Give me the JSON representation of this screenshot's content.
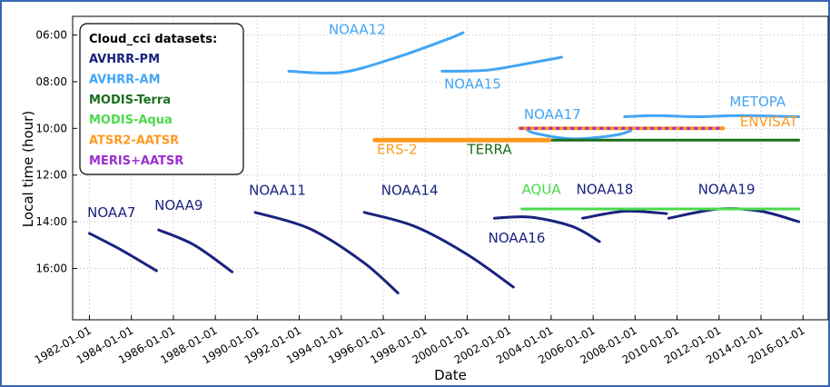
{
  "chart_data": {
    "type": "line",
    "xlabel": "Date",
    "ylabel": "Local time (hour)",
    "xlim": [
      1981.2,
      2017.2
    ],
    "ylim": [
      18.2,
      5.2
    ],
    "y_inverted": true,
    "grid": true,
    "x_ticks": [
      {
        "x": 1982,
        "label": "1982-01-01"
      },
      {
        "x": 1984,
        "label": "1984-01-01"
      },
      {
        "x": 1986,
        "label": "1986-01-01"
      },
      {
        "x": 1988,
        "label": "1988-01-01"
      },
      {
        "x": 1990,
        "label": "1990-01-01"
      },
      {
        "x": 1992,
        "label": "1992-01-01"
      },
      {
        "x": 1994,
        "label": "1994-01-01"
      },
      {
        "x": 1996,
        "label": "1996-01-01"
      },
      {
        "x": 1998,
        "label": "1998-01-01"
      },
      {
        "x": 2000,
        "label": "2000-01-01"
      },
      {
        "x": 2002,
        "label": "2002-01-01"
      },
      {
        "x": 2004,
        "label": "2004-01-01"
      },
      {
        "x": 2006,
        "label": "2006-01-01"
      },
      {
        "x": 2008,
        "label": "2008-01-01"
      },
      {
        "x": 2010,
        "label": "2010-01-01"
      },
      {
        "x": 2012,
        "label": "2012-01-01"
      },
      {
        "x": 2014,
        "label": "2014-01-01"
      },
      {
        "x": 2016,
        "label": "2016-01-01"
      }
    ],
    "y_ticks": [
      {
        "y": 6,
        "label": "06:00"
      },
      {
        "y": 8,
        "label": "08:00"
      },
      {
        "y": 10,
        "label": "10:00"
      },
      {
        "y": 12,
        "label": "12:00"
      },
      {
        "y": 14,
        "label": "14:00"
      },
      {
        "y": 16,
        "label": "16:00"
      }
    ],
    "legend": {
      "title": "Cloud_cci datasets:",
      "position": "top-left",
      "items": [
        {
          "label": "AVHRR-PM",
          "color": "#1a237e"
        },
        {
          "label": "AVHRR-AM",
          "color": "#42a5f5"
        },
        {
          "label": "MODIS-Terra",
          "color": "#1b6e1b"
        },
        {
          "label": "MODIS-Aqua",
          "color": "#4cd94c"
        },
        {
          "label": "ATSR2-AATSR",
          "color": "#ff9a1f"
        },
        {
          "label": "MERIS+AATSR",
          "color": "#9b2fd1"
        }
      ]
    },
    "series": [
      {
        "name": "NOAA7",
        "group": "AVHRR-PM",
        "color": "#1a237e",
        "points": [
          [
            1982.0,
            14.5
          ],
          [
            1983.5,
            15.2
          ],
          [
            1985.2,
            16.1
          ]
        ]
      },
      {
        "name": "NOAA9",
        "group": "AVHRR-PM",
        "color": "#1a237e",
        "points": [
          [
            1985.3,
            14.35
          ],
          [
            1987.0,
            15.0
          ],
          [
            1988.8,
            16.15
          ]
        ]
      },
      {
        "name": "NOAA11",
        "group": "AVHRR-PM",
        "color": "#1a237e",
        "points": [
          [
            1989.9,
            13.6
          ],
          [
            1992.5,
            14.3
          ],
          [
            1995.0,
            15.7
          ],
          [
            1996.7,
            17.05
          ]
        ]
      },
      {
        "name": "NOAA14",
        "group": "AVHRR-PM",
        "color": "#1a237e",
        "points": [
          [
            1995.1,
            13.6
          ],
          [
            1997.5,
            14.2
          ],
          [
            2000.0,
            15.4
          ],
          [
            2002.2,
            16.8
          ]
        ]
      },
      {
        "name": "NOAA16",
        "group": "AVHRR-PM",
        "color": "#1a237e",
        "points": [
          [
            2001.3,
            13.85
          ],
          [
            2003.0,
            13.8
          ],
          [
            2005.0,
            14.2
          ],
          [
            2006.3,
            14.85
          ]
        ]
      },
      {
        "name": "NOAA18",
        "group": "AVHRR-PM",
        "color": "#1a237e",
        "points": [
          [
            2005.5,
            13.85
          ],
          [
            2007.5,
            13.55
          ],
          [
            2009.5,
            13.65
          ]
        ]
      },
      {
        "name": "NOAA19",
        "group": "AVHRR-PM",
        "color": "#1a237e",
        "points": [
          [
            2009.6,
            13.85
          ],
          [
            2012.0,
            13.45
          ],
          [
            2014.0,
            13.55
          ],
          [
            2015.8,
            14.0
          ]
        ]
      },
      {
        "name": "NOAA12",
        "group": "AVHRR-AM",
        "color": "#42a5f5",
        "points": [
          [
            1991.5,
            7.55
          ],
          [
            1994.0,
            7.6
          ],
          [
            1996.5,
            7.0
          ],
          [
            1999.0,
            6.2
          ],
          [
            1999.8,
            5.9
          ]
        ]
      },
      {
        "name": "NOAA15",
        "group": "AVHRR-AM",
        "color": "#42a5f5",
        "points": [
          [
            1998.8,
            7.55
          ],
          [
            2001.0,
            7.5
          ],
          [
            2003.0,
            7.2
          ],
          [
            2004.5,
            6.95
          ]
        ]
      },
      {
        "name": "NOAA17",
        "group": "AVHRR-AM",
        "color": "#42a5f5",
        "points": [
          [
            2002.8,
            10.0
          ],
          [
            2003.2,
            10.2
          ],
          [
            2005.0,
            10.45
          ],
          [
            2007.0,
            10.3
          ],
          [
            2007.8,
            10.1
          ]
        ]
      },
      {
        "name": "METOPA",
        "group": "AVHRR-AM",
        "color": "#42a5f5",
        "points": [
          [
            2007.5,
            9.5
          ],
          [
            2009.0,
            9.45
          ],
          [
            2011.0,
            9.5
          ],
          [
            2013.0,
            9.45
          ],
          [
            2015.8,
            9.5
          ]
        ]
      },
      {
        "name": "TERRA",
        "group": "MODIS-Terra",
        "color": "#1b6e1b",
        "points": [
          [
            2000.0,
            10.5
          ],
          [
            2015.8,
            10.5
          ]
        ]
      },
      {
        "name": "AQUA",
        "group": "MODIS-Aqua",
        "color": "#4cd94c",
        "points": [
          [
            2002.6,
            13.45
          ],
          [
            2015.8,
            13.45
          ]
        ]
      },
      {
        "name": "ERS-2",
        "group": "ATSR2-AATSR",
        "color": "#ff9a1f",
        "points": [
          [
            1995.6,
            10.5
          ],
          [
            2003.9,
            10.5
          ]
        ]
      },
      {
        "name": "ENVISAT",
        "group": "ATSR2-AATSR",
        "color": "#ff9a1f",
        "points": [
          [
            2002.5,
            10.0
          ],
          [
            2012.2,
            10.0
          ]
        ]
      },
      {
        "name": "MERIS+AATSR",
        "group": "MERIS+AATSR",
        "color": "#9b2fd1",
        "points": [
          [
            2002.5,
            10.0
          ],
          [
            2012.2,
            10.0
          ]
        ],
        "dashed": true
      }
    ],
    "annotations": [
      {
        "text": "NOAA7",
        "x": 1981.9,
        "y": 13.8,
        "color": "#1a237e"
      },
      {
        "text": "NOAA9",
        "x": 1985.1,
        "y": 13.5,
        "color": "#1a237e"
      },
      {
        "text": "NOAA11",
        "x": 1989.6,
        "y": 12.85,
        "color": "#1a237e"
      },
      {
        "text": "NOAA14",
        "x": 1995.9,
        "y": 12.85,
        "color": "#1a237e"
      },
      {
        "text": "NOAA16",
        "x": 2001.0,
        "y": 14.9,
        "color": "#1a237e"
      },
      {
        "text": "NOAA18",
        "x": 2005.2,
        "y": 12.8,
        "color": "#1a237e"
      },
      {
        "text": "NOAA19",
        "x": 2011.0,
        "y": 12.8,
        "color": "#1a237e"
      },
      {
        "text": "NOAA12",
        "x": 1993.4,
        "y": 5.95,
        "color": "#42a5f5"
      },
      {
        "text": "NOAA15",
        "x": 1998.9,
        "y": 8.3,
        "color": "#42a5f5"
      },
      {
        "text": "NOAA17",
        "x": 2002.7,
        "y": 9.6,
        "color": "#42a5f5"
      },
      {
        "text": "METOPA",
        "x": 2012.5,
        "y": 9.05,
        "color": "#42a5f5"
      },
      {
        "text": "TERRA",
        "x": 2000.0,
        "y": 11.1,
        "color": "#1b6e1b"
      },
      {
        "text": "AQUA",
        "x": 2002.6,
        "y": 12.8,
        "color": "#4cd94c"
      },
      {
        "text": "ERS-2",
        "x": 1995.7,
        "y": 11.1,
        "color": "#ff9a1f"
      },
      {
        "text": "ENVISAT",
        "x": 2013.0,
        "y": 9.9,
        "color": "#ff9a1f"
      }
    ]
  }
}
